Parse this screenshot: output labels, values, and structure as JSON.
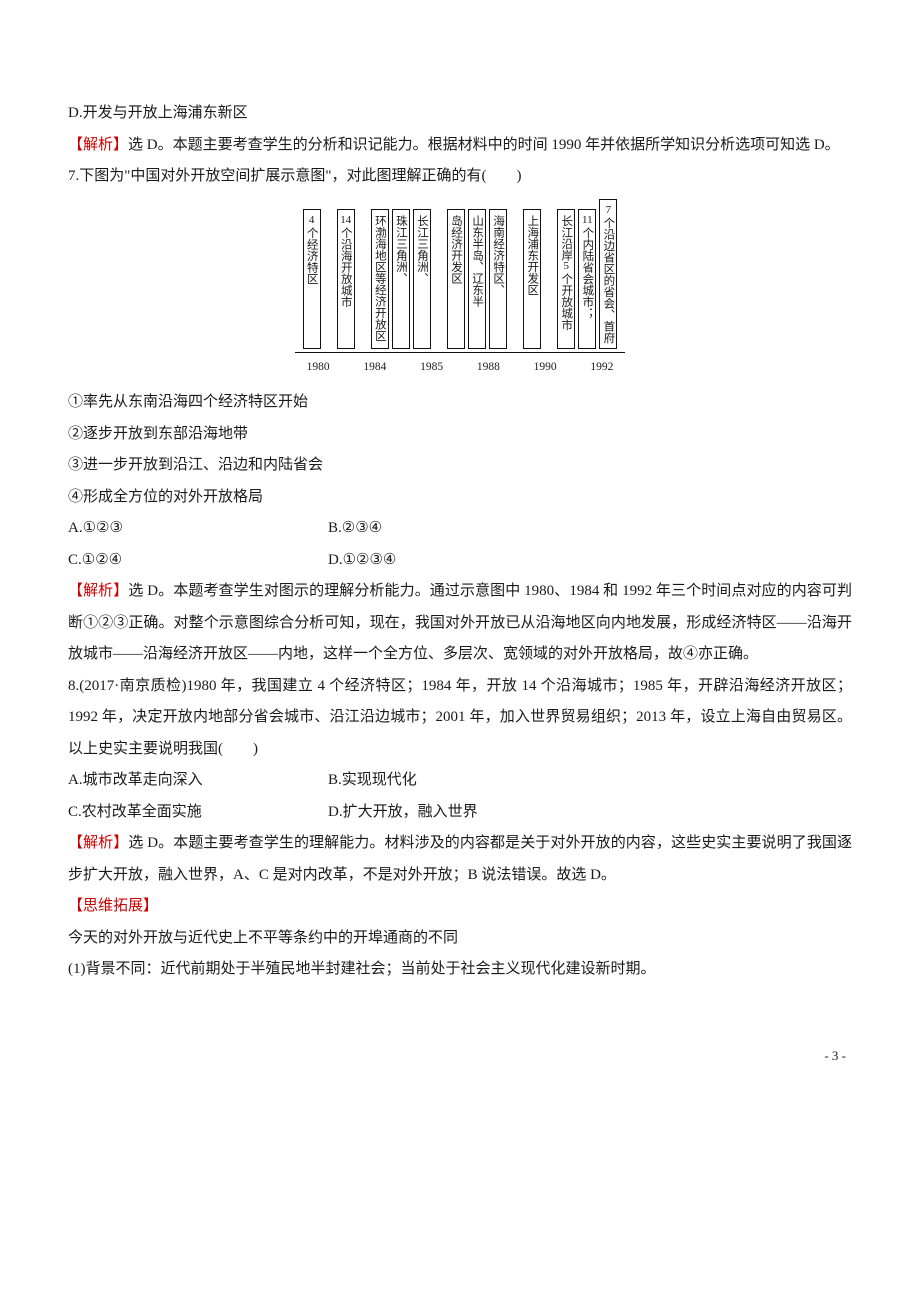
{
  "lines": {
    "l0": "D.开发与开放上海浦东新区",
    "l1a": "【解析】",
    "l1b": "选 D。本题主要考查学生的分析和识记能力。根据材料中的时间 1990 年并依据所学知识分析选项可知选 D。",
    "l2": "7.下图为\"中国对外开放空间扩展示意图\"，对此图理解正确的有(　　)",
    "l3": "①率先从东南沿海四个经济特区开始",
    "l4": "②逐步开放到东部沿海地带",
    "l5": "③进一步开放到沿江、沿边和内陆省会",
    "l6": "④形成全方位的对外开放格局",
    "l7a": "A.①②③",
    "l7b": "B.②③④",
    "l8a": "C.①②④",
    "l8b": "D.①②③④",
    "l9a": "【解析】",
    "l9b": "选 D。本题考查学生对图示的理解分析能力。通过示意图中 1980、1984 和 1992 年三个时间点对应的内容可判断①②③正确。对整个示意图综合分析可知，现在，我国对外开放已从沿海地区向内地发展，形成经济特区——沿海开放城市——沿海经济开放区——内地，这样一个全方位、多层次、宽领域的对外开放格局，故④亦正确。",
    "l10": "8.(2017·南京质检)1980 年，我国建立 4 个经济特区；1984 年，开放 14 个沿海城市；1985 年，开辟沿海经济开放区；1992 年，决定开放内地部分省会城市、沿江沿边城市；2001 年，加入世界贸易组织；2013 年，设立上海自由贸易区。以上史实主要说明我国(　　)",
    "l11a": "A.城市改革走向深入",
    "l11b": "B.实现现代化",
    "l12a": "C.农村改革全面实施",
    "l12b": "D.扩大开放，融入世界",
    "l13a": "【解析】",
    "l13b": "选 D。本题主要考查学生的理解能力。材料涉及的内容都是关于对外开放的内容，这些史实主要说明了我国逐步扩大开放，融入世界，A、C 是对内改革，不是对外开放；B 说法错误。故选 D。",
    "l14": "【思维拓展】",
    "l15": "今天的对外开放与近代史上不平等条约中的开埠通商的不同",
    "l16": "(1)背景不同：近代前期处于半殖民地半封建社会；当前处于社会主义现代化建设新时期。"
  },
  "diagram": {
    "years": [
      "1980",
      "1984",
      "1985",
      "1988",
      "1990",
      "1992"
    ],
    "groups": [
      {
        "year": "1980",
        "boxes": [
          {
            "num": "4",
            "text": "个经济特区"
          }
        ]
      },
      {
        "year": "1984",
        "boxes": [
          {
            "num": "14",
            "text": "个沿海开放城市"
          }
        ]
      },
      {
        "year": "1985",
        "boxes": [
          {
            "text": "环渤海地区等经济开放区"
          },
          {
            "text": "珠江三角洲、"
          },
          {
            "text": "长江三角洲、"
          }
        ]
      },
      {
        "year": "1988",
        "boxes": [
          {
            "text": "岛经济开发区"
          },
          {
            "text": "山东半岛、辽东半"
          },
          {
            "text": "海南经济特区、"
          }
        ]
      },
      {
        "year": "1990",
        "boxes": [
          {
            "text": "上海浦东开发区"
          }
        ]
      },
      {
        "year": "1992",
        "boxes": [
          {
            "text": "长江沿岸",
            "num2": "5",
            "text2": "个开放城市"
          },
          {
            "num": "11",
            "text": "个内陆省会城市；"
          },
          {
            "num": "7",
            "text": "个沿边省区的省会、首府"
          }
        ]
      }
    ]
  },
  "page_num": "- 3 -"
}
